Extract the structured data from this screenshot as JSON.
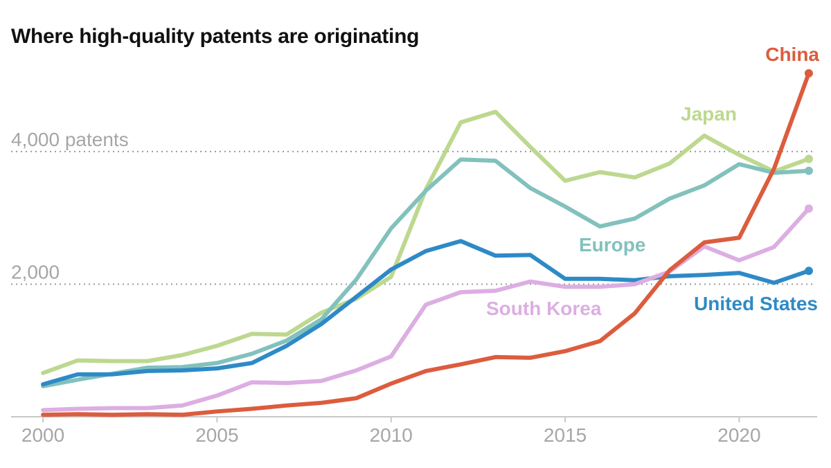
{
  "chart_data": {
    "type": "line",
    "title": "Where high-quality patents are originating",
    "xlabel": "",
    "ylabel": "",
    "x": [
      2000,
      2001,
      2002,
      2003,
      2004,
      2005,
      2006,
      2007,
      2008,
      2009,
      2010,
      2011,
      2012,
      2013,
      2014,
      2015,
      2016,
      2017,
      2018,
      2019,
      2020,
      2021,
      2022
    ],
    "xlim": [
      1999.8,
      2022.2
    ],
    "ylim": [
      0,
      5200
    ],
    "x_ticks": [
      2000,
      2005,
      2010,
      2015,
      2020
    ],
    "x_tick_labels": [
      "2000",
      "2005",
      "2010",
      "2015",
      "2020"
    ],
    "y_gridlines": [
      {
        "value": 2000,
        "label": "2,000"
      },
      {
        "value": 4000,
        "label": "4,000 patents"
      }
    ],
    "grid": "dotted horizontal at labeled values",
    "legend": "direct labels",
    "series": [
      {
        "name": "Japan",
        "color": "#bdd88f",
        "values": [
          660,
          850,
          840,
          840,
          930,
          1070,
          1250,
          1240,
          1570,
          1780,
          2110,
          3430,
          4440,
          4600,
          4070,
          3560,
          3690,
          3610,
          3820,
          4240,
          3950,
          3700,
          3890
        ]
      },
      {
        "name": "Europe",
        "color": "#82c1bd",
        "values": [
          460,
          560,
          650,
          740,
          750,
          810,
          950,
          1150,
          1470,
          2070,
          2840,
          3410,
          3880,
          3860,
          3450,
          3170,
          2870,
          2990,
          3290,
          3490,
          3810,
          3680,
          3710
        ]
      },
      {
        "name": "United States",
        "color": "#2e8ac6",
        "values": [
          490,
          640,
          640,
          690,
          700,
          730,
          810,
          1070,
          1400,
          1810,
          2220,
          2500,
          2650,
          2430,
          2440,
          2080,
          2080,
          2060,
          2120,
          2140,
          2170,
          2020,
          2200
        ]
      },
      {
        "name": "South Korea",
        "color": "#dcaee2",
        "values": [
          100,
          120,
          130,
          130,
          170,
          320,
          520,
          510,
          540,
          700,
          910,
          1690,
          1880,
          1900,
          2040,
          1960,
          1960,
          2000,
          2190,
          2570,
          2360,
          2560,
          3140
        ]
      },
      {
        "name": "China",
        "color": "#dc5c3e",
        "values": [
          30,
          40,
          30,
          40,
          30,
          80,
          120,
          170,
          210,
          280,
          500,
          690,
          790,
          900,
          890,
          990,
          1140,
          1560,
          2210,
          2630,
          2700,
          3740,
          5180
        ]
      }
    ],
    "labels": [
      {
        "series": "China",
        "text": "China"
      },
      {
        "series": "Japan",
        "text": "Japan"
      },
      {
        "series": "Europe",
        "text": "Europe"
      },
      {
        "series": "South Korea",
        "text": "South Korea"
      },
      {
        "series": "United States",
        "text": "United States"
      }
    ]
  }
}
